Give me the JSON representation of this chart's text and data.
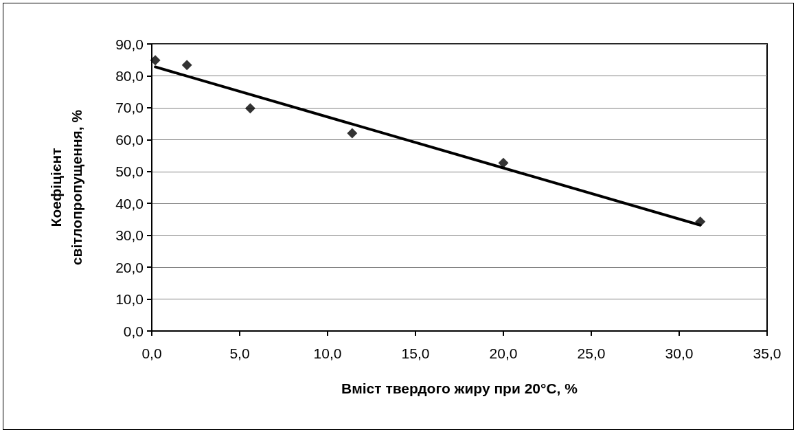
{
  "chart_data": {
    "type": "scatter",
    "xlabel": "Вміст твердого жиру при 20°С, %",
    "ylabel": "Коефіцієнт\nсвітлопропущення, %",
    "x": [
      0.2,
      2.0,
      5.6,
      11.4,
      20.0,
      31.2
    ],
    "series": [
      {
        "color": "#000000",
        "marker": "diamond",
        "values": [
          84.9,
          83.4,
          69.8,
          62.0,
          52.7,
          34.3
        ]
      },
      {
        "type": "line",
        "color": "#000000",
        "marker": "none",
        "x": [
          0.2,
          31.2
        ],
        "values": [
          82.8,
          33.2
        ]
      }
    ],
    "xlim": [
      0,
      35
    ],
    "xticks": [
      {
        "value": 0,
        "label": "0,0"
      },
      {
        "value": 5,
        "label": "5,0"
      },
      {
        "value": 10,
        "label": "10,0"
      },
      {
        "value": 15,
        "label": "15,0"
      },
      {
        "value": 20,
        "label": "20,0"
      },
      {
        "value": 25,
        "label": "25,0"
      },
      {
        "value": 30,
        "label": "30,0"
      },
      {
        "value": 35,
        "label": "35,0"
      }
    ],
    "ylim": [
      0,
      90
    ],
    "yticks": [
      {
        "value": 0,
        "label": "0,0"
      },
      {
        "value": 10,
        "label": "10,0"
      },
      {
        "value": 20,
        "label": "20,0"
      },
      {
        "value": 30,
        "label": "30,0"
      },
      {
        "value": 40,
        "label": "40,0"
      },
      {
        "value": 50,
        "label": "50,0"
      },
      {
        "value": 60,
        "label": "60,0"
      },
      {
        "value": 70,
        "label": "70,0"
      },
      {
        "value": 80,
        "label": "80,0"
      },
      {
        "value": 90,
        "label": "90,0"
      }
    ],
    "grid": "y"
  }
}
